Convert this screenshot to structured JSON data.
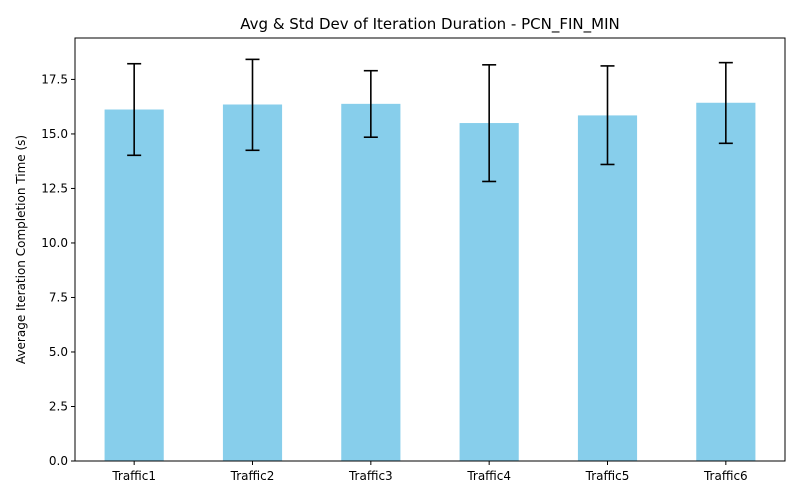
{
  "chart_data": {
    "type": "bar",
    "title": "Avg & Std Dev of Iteration Duration - PCN_FIN_MIN",
    "xlabel": "",
    "ylabel": "Average Iteration Completion Time (s)",
    "categories": [
      "Traffic1",
      "Traffic2",
      "Traffic3",
      "Traffic4",
      "Traffic5",
      "Traffic6"
    ],
    "values": [
      16.12,
      16.35,
      16.38,
      15.5,
      15.85,
      16.43
    ],
    "error_low": [
      14.02,
      14.25,
      14.85,
      12.82,
      13.6,
      14.57
    ],
    "error_high": [
      18.22,
      18.42,
      17.9,
      18.17,
      18.12,
      18.27
    ],
    "ylim": [
      0,
      19.4
    ],
    "yticks": [
      0.0,
      2.5,
      5.0,
      7.5,
      10.0,
      12.5,
      15.0,
      17.5
    ],
    "ytick_labels": [
      "0.0",
      "2.5",
      "5.0",
      "7.5",
      "10.0",
      "12.5",
      "15.0",
      "17.5"
    ],
    "grid": false,
    "bar_color": "#87CEEB",
    "error_color": "#000000"
  }
}
